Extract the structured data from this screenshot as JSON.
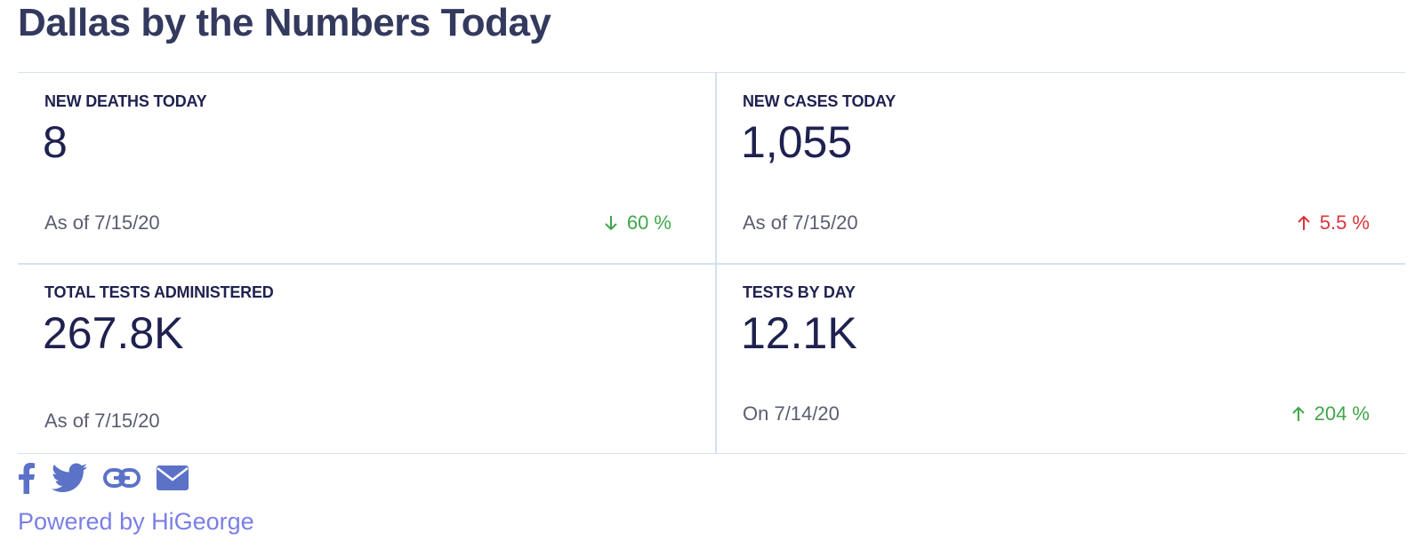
{
  "header": {
    "title": "Dallas by the Numbers Today"
  },
  "cards": [
    {
      "label": "NEW DEATHS TODAY",
      "value": "8",
      "date": "As of 7/15/20",
      "change": "60 %",
      "direction": "down",
      "change_color": "#3fa64b"
    },
    {
      "label": "NEW CASES TODAY",
      "value": "1,055",
      "date": "As of 7/15/20",
      "change": "5.5 %",
      "direction": "up",
      "change_color": "#d9343a"
    },
    {
      "label": "TOTAL TESTS ADMINISTERED",
      "value": "267.8K",
      "date": "As of 7/15/20"
    },
    {
      "label": "TESTS BY DAY",
      "value": "12.1K",
      "date": "On 7/14/20",
      "change": "204 %",
      "direction": "up",
      "change_color": "#3fa64b"
    }
  ],
  "share": {
    "icons": [
      "facebook-icon",
      "twitter-icon",
      "link-icon",
      "email-icon"
    ],
    "icon_color": "#5b72c7"
  },
  "footer": {
    "powered_by": "Powered by HiGeorge"
  }
}
